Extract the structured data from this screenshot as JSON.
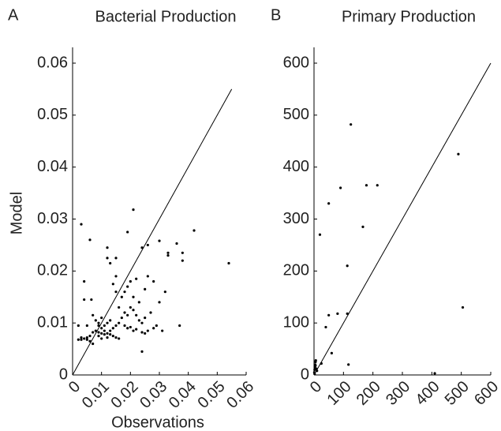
{
  "chart_data": [
    {
      "type": "scatter",
      "panel_label": "A",
      "title": "Bacterial Production",
      "x_label": "Observations",
      "y_label": "Model",
      "color": "#000000",
      "xlim": [
        0,
        0.06
      ],
      "xticks": [
        0,
        0.01,
        0.02,
        0.03,
        0.04,
        0.05,
        0.06
      ],
      "ylim": [
        0,
        0.06
      ],
      "yticks": [
        0,
        0.01,
        0.02,
        0.03,
        0.04,
        0.05,
        0.06
      ],
      "reference_line": {
        "x": [
          0,
          0.055
        ],
        "y": [
          0,
          0.055
        ]
      },
      "x": [
        0.003,
        0.006,
        0.004,
        0.004,
        0.0065,
        0.002,
        0.005,
        0.007,
        0.008,
        0.009,
        0.01,
        0.011,
        0.012,
        0.013,
        0.014,
        0.015,
        0.016,
        0.008,
        0.009,
        0.01,
        0.011,
        0.007,
        0.006,
        0.005,
        0.004,
        0.003,
        0.002,
        0.003,
        0.005,
        0.006,
        0.007,
        0.009,
        0.01,
        0.012,
        0.013,
        0.014,
        0.015,
        0.016,
        0.018,
        0.019,
        0.02,
        0.021,
        0.022,
        0.024,
        0.025,
        0.026,
        0.028,
        0.029,
        0.031,
        0.017,
        0.018,
        0.019,
        0.02,
        0.021,
        0.022,
        0.023,
        0.024,
        0.016,
        0.017,
        0.015,
        0.018,
        0.019,
        0.02,
        0.022,
        0.025,
        0.026,
        0.028,
        0.03,
        0.032,
        0.014,
        0.015,
        0.013,
        0.012,
        0.012,
        0.015,
        0.019,
        0.021,
        0.024,
        0.026,
        0.03,
        0.033,
        0.033,
        0.036,
        0.038,
        0.038,
        0.042,
        0.037,
        0.024,
        0.054,
        0.011,
        0.012,
        0.013,
        0.01,
        0.009,
        0.027,
        0.025,
        0.023,
        0.021
      ],
      "values": [
        0.029,
        0.026,
        0.018,
        0.0145,
        0.0145,
        0.0095,
        0.0095,
        0.0115,
        0.0105,
        0.0095,
        0.009,
        0.0085,
        0.008,
        0.0078,
        0.0075,
        0.0072,
        0.007,
        0.0085,
        0.0082,
        0.008,
        0.0078,
        0.0082,
        0.0075,
        0.0072,
        0.007,
        0.0068,
        0.0068,
        0.0072,
        0.0068,
        0.0065,
        0.006,
        0.0075,
        0.007,
        0.0072,
        0.0085,
        0.009,
        0.0095,
        0.01,
        0.0095,
        0.009,
        0.0092,
        0.0085,
        0.0088,
        0.0082,
        0.008,
        0.0085,
        0.009,
        0.0095,
        0.0085,
        0.011,
        0.012,
        0.0115,
        0.013,
        0.0125,
        0.0115,
        0.0105,
        0.01,
        0.013,
        0.015,
        0.016,
        0.016,
        0.017,
        0.018,
        0.0185,
        0.0165,
        0.019,
        0.018,
        0.014,
        0.016,
        0.0175,
        0.019,
        0.0215,
        0.0225,
        0.0245,
        0.0225,
        0.0275,
        0.0318,
        0.0245,
        0.025,
        0.0258,
        0.023,
        0.0235,
        0.0253,
        0.0235,
        0.022,
        0.0278,
        0.0095,
        0.0045,
        0.0215,
        0.0095,
        0.01,
        0.0105,
        0.011,
        0.01,
        0.012,
        0.011,
        0.014,
        0.015
      ]
    },
    {
      "type": "scatter",
      "panel_label": "B",
      "title": "Primary Production",
      "color": "#000000",
      "xlim": [
        0,
        600
      ],
      "xticks": [
        0,
        100,
        200,
        300,
        400,
        500,
        600
      ],
      "ylim": [
        0,
        600
      ],
      "yticks": [
        0,
        100,
        200,
        300,
        400,
        500,
        600
      ],
      "reference_line": {
        "x": [
          0,
          600
        ],
        "y": [
          0,
          600
        ]
      },
      "x": [
        125,
        90,
        178,
        215,
        50,
        166,
        20,
        113,
        50,
        80,
        113,
        40,
        60,
        117,
        490,
        505,
        410,
        25,
        1,
        2,
        3,
        4,
        5,
        6,
        2,
        8,
        10,
        5,
        3
      ],
      "values": [
        482,
        360,
        365,
        365,
        330,
        285,
        270,
        210,
        115,
        118,
        118,
        92,
        42,
        20,
        425,
        130,
        3,
        22,
        5,
        10,
        15,
        20,
        25,
        28,
        2,
        12,
        8,
        18,
        12
      ]
    }
  ]
}
